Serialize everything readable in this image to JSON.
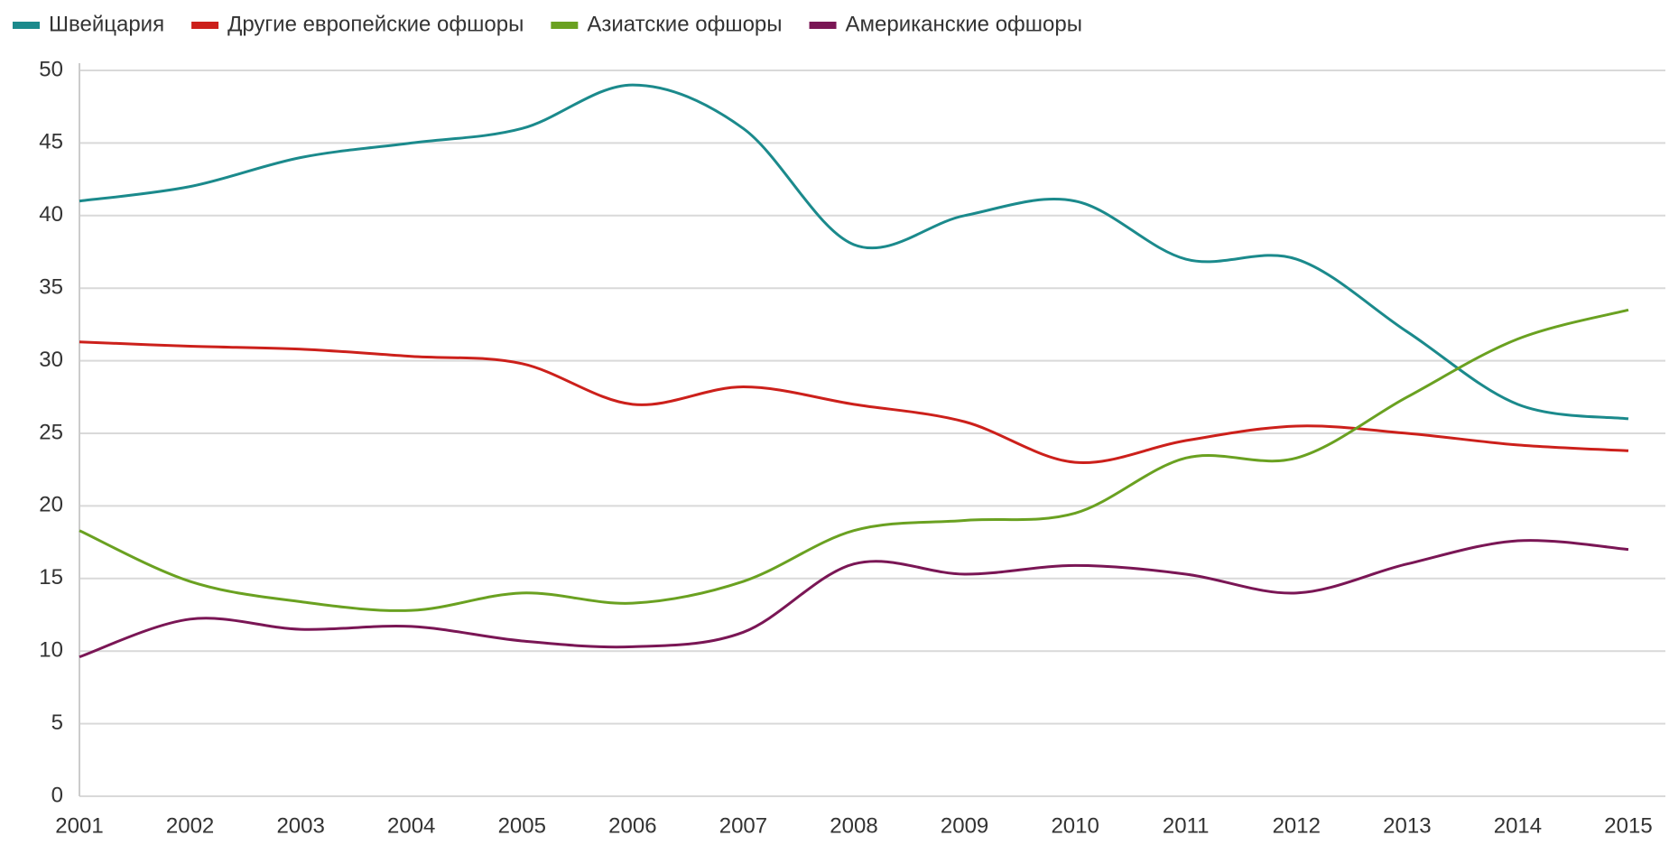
{
  "chart_data": {
    "type": "line",
    "categories": [
      "2001",
      "2002",
      "2003",
      "2004",
      "2005",
      "2006",
      "2007",
      "2008",
      "2009",
      "2010",
      "2011",
      "2012",
      "2013",
      "2014",
      "2015"
    ],
    "series": [
      {
        "name": "Швейцария",
        "color": "#1b8a8c",
        "values": [
          41,
          42,
          44,
          45,
          46,
          49,
          46,
          38,
          40,
          41,
          37,
          37,
          32,
          27,
          26
        ]
      },
      {
        "name": "Другие европейские офшоры",
        "color": "#cc201b",
        "values": [
          31.3,
          31,
          30.8,
          30.3,
          29.8,
          27,
          28.2,
          27,
          25.8,
          23,
          24.5,
          25.5,
          25,
          24.2,
          23.8
        ]
      },
      {
        "name": "Азиатские офшоры",
        "color": "#6aa121",
        "values": [
          18.3,
          14.8,
          13.4,
          12.8,
          14,
          13.3,
          14.8,
          18.3,
          19,
          19.5,
          23.3,
          23.3,
          27.5,
          31.5,
          33.5
        ]
      },
      {
        "name": "Американские офшоры",
        "color": "#7a1655",
        "values": [
          9.6,
          12.2,
          11.5,
          11.7,
          10.7,
          10.3,
          11.3,
          16,
          15.3,
          15.9,
          15.3,
          14,
          16,
          17.6,
          17
        ]
      }
    ],
    "ylim": [
      0,
      50
    ],
    "yticks": [
      0,
      5,
      10,
      15,
      20,
      25,
      30,
      35,
      40,
      45,
      50
    ],
    "grid": true,
    "legend": "top"
  }
}
